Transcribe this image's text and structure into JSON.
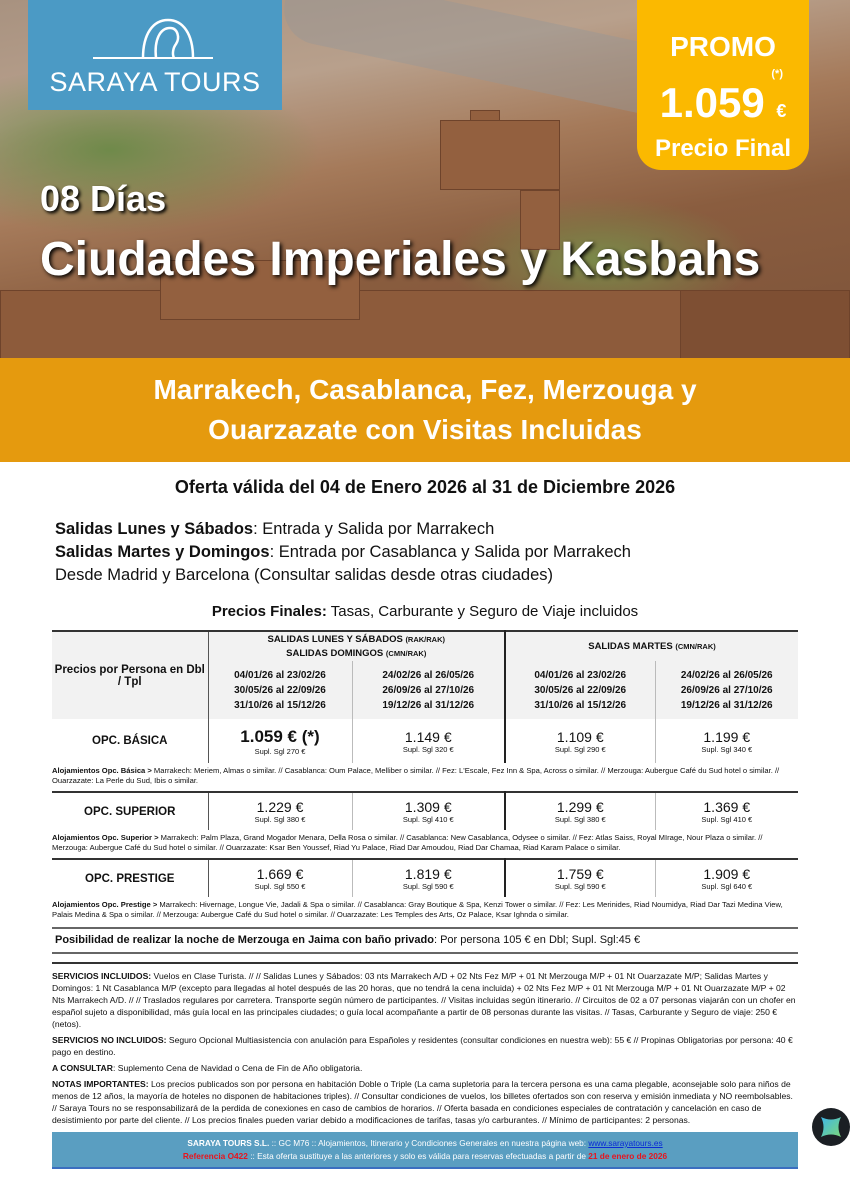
{
  "brand": {
    "name": "SARAYA TOURS",
    "color": "#4b9ac5"
  },
  "promo": {
    "label": "PROMO",
    "price": "1.059",
    "currency": "€",
    "asterisk": "(*)",
    "final": "Precio Final",
    "color": "#fbb900"
  },
  "hero": {
    "days": "08 Días",
    "title": "Ciudades Imperiales y Kasbahs"
  },
  "band": {
    "line1": "Marrakech, Casablanca, Fez, Merzouga y",
    "line2": "Ouarzazate con Visitas Incluidas",
    "color": "#e59a0e"
  },
  "validity": "Oferta válida del 04 de Enero 2026 al 31 de Diciembre 2026",
  "departures": [
    {
      "bold": "Salidas Lunes y Sábados",
      "text": ": Entrada y Salida por Marrakech"
    },
    {
      "bold": "Salidas Martes y Domingos",
      "text": ": Entrada por Casablanca y Salida por Marrakech"
    },
    {
      "bold": "",
      "text": "Desde Madrid y Barcelona (Consultar salidas desde otras ciudades)"
    }
  ],
  "prices_note": {
    "bold": "Precios Finales:",
    "text": " Tasas, Carburante y Seguro de Viaje incluidos"
  },
  "table": {
    "corner": "Precios por Persona en Dbl / Tpl",
    "group1": {
      "l1": "SALIDAS LUNES Y SÁBADOS",
      "l1s": "(RAK/RAK)",
      "l2": "SALIDAS DOMINGOS",
      "l2s": "(CMN/RAK)"
    },
    "group2": {
      "l1": "SALIDAS MARTES",
      "l1s": "(CMN/RAK)"
    },
    "dates": [
      [
        "04/01/26 al 23/02/26",
        "30/05/26 al 22/09/26",
        "31/10/26 al 15/12/26"
      ],
      [
        "24/02/26 al 26/05/26",
        "26/09/26 al 27/10/26",
        "19/12/26 al 31/12/26"
      ],
      [
        "04/01/26 al 23/02/26",
        "30/05/26 al 22/09/26",
        "31/10/26 al 15/12/26"
      ],
      [
        "24/02/26 al 26/05/26",
        "26/09/26 al 27/10/26",
        "19/12/26 al 31/12/26"
      ]
    ],
    "rows": [
      {
        "label": "OPC. BÁSICA",
        "prices": [
          {
            "p": "1.059 € (*)",
            "s": "Supl. Sgl 270 €"
          },
          {
            "p": "1.149 €",
            "s": "Supl. Sgl 320 €"
          },
          {
            "p": "1.109 €",
            "s": "Supl. Sgl 290 €"
          },
          {
            "p": "1.199 €",
            "s": "Supl. Sgl 340 €"
          }
        ],
        "hotels_label": "Alojamientos Opc. Básica >",
        "hotels": " Marrakech: Meriem, Almas o similar. // Casablanca: Oum Palace, Melliber o similar. // Fez: L'Escale, Fez Inn & Spa, Across o similar. // Merzouga: Aubergue Café du Sud hotel o similar. // Ouarzazate: La Perle du Sud, Ibis o similar."
      },
      {
        "label": "OPC. SUPERIOR",
        "prices": [
          {
            "p": "1.229 €",
            "s": "Supl. Sgl 380 €"
          },
          {
            "p": "1.309 €",
            "s": "Supl. Sgl 410 €"
          },
          {
            "p": "1.299 €",
            "s": "Supl. Sgl 380 €"
          },
          {
            "p": "1.369 €",
            "s": "Supl. Sgl 410 €"
          }
        ],
        "hotels_label": "Alojamientos Opc. Superior >",
        "hotels": " Marrakech: Palm Plaza, Grand Mogador Menara, Della Rosa o similar. // Casablanca: New Casablanca, Odysee o similar. // Fez: Atlas Saiss, Royal MIrage, Nour Plaza o similar. // Merzouga: Aubergue Café du Sud hotel o similar. // Ouarzazate: Ksar Ben Youssef, Riad Yu Palace, Riad Dar Amoudou, Riad Dar Chamaa, Riad Karam Palace o similar."
      },
      {
        "label": "OPC. PRESTIGE",
        "prices": [
          {
            "p": "1.669 €",
            "s": "Supl. Sgl 550 €"
          },
          {
            "p": "1.819 €",
            "s": "Supl. Sgl 590 €"
          },
          {
            "p": "1.759 €",
            "s": "Supl. Sgl 590 €"
          },
          {
            "p": "1.909 €",
            "s": "Supl. Sgl 640 €"
          }
        ],
        "hotels_label": "Alojamientos Opc. Prestige >",
        "hotels": " Marrakech: Hivernage, Longue Vie, Jadali & Spa o similar. // Casablanca: Gray Boutique & Spa, Kenzi Tower o similar. // Fez: Les Merinides, Riad Noumidya, Riad Dar Tazi Medina View, Palais Medina & Spa o similar. // Merzouga: Aubergue Café du Sud hotel o similar.  // Ouarzazate: Les Temples des Arts, Oz Palace, Ksar Ighnda o similar."
      }
    ]
  },
  "jaima": {
    "bold": "Posibilidad de realizar la noche de Merzouga en Jaima con baño privado",
    "text": ": Por persona 105 € en Dbl; Supl. Sgl:45 €"
  },
  "services": [
    {
      "bold": "SERVICIOS INCLUIDOS:",
      "text": " Vuelos en Clase Turista. // // Salidas Lunes y Sábados: 03 nts Marrakech A/D + 02 Nts Fez M/P + 01 Nt Merzouga M/P + 01 Nt Ouarzazate M/P; Salidas Martes y Domingos: 1 Nt Casablanca M/P (excepto para llegadas al hotel después de las 20 horas, que no tendrá la cena incluida) + 02 Nts Fez M/P + 01 Nt Merzouga M/P + 01 Nt Ouarzazate M/P + 02 Nts Marrakech A/D. // // Traslados regulares por carretera. Transporte según número de participantes. // Visitas incluidas según itinerario. // Circuitos de 02 a 07 personas viajarán con un chofer en español sujeto a disponibilidad, más guía local en las principales ciudades; o guía local acompañante a partir de 08 personas durante las visitas. // Tasas, Carburante y Seguro de viaje: 250 € (netos)."
    },
    {
      "bold": "SERVICIOS NO INCLUIDOS:",
      "text": " Seguro Opcional Multiasistencia con anulación para Españoles y residentes (consultar condiciones en nuestra web): 55 € // Propinas Obligatorias por persona: 40 €  pago en destino."
    },
    {
      "bold": "A CONSULTAR",
      "text": ": Suplemento Cena de Navidad o Cena de Fin de Año obligatoria."
    },
    {
      "bold": "NOTAS IMPORTANTES:",
      "text": " Los precios publicados son por persona en habitación Doble o Triple (La cama supletoria para la tercera persona es una cama plegable, aconsejable solo para niños de menos de 12 años, la mayoría de hoteles no disponen de habitaciones triples). // Consultar condiciones de vuelos, los billetes ofertados son con reserva y emisión inmediata y NO reembolsables. // Saraya Tours no se responsabilizará de la perdida de conexiones en caso de cambios de horarios. // Oferta basada en condiciones especiales de contratación y cancelación en caso de desistimiento por parte del cliente. // Los precios finales pueden variar debido a modificaciones de tarifas, tasas y/o carburantes. // Mínimo de participantes: 2 personas."
    }
  ],
  "footer": {
    "company": "SARAYA TOURS S.L.",
    "line1": " :: GC M76 ::  Alojamientos, Itinerario y Condiciones Generales en nuestra página web:  ",
    "url": "www.sarayatours.es",
    "ref": "Referencia O422",
    "line2": " :: Esta oferta sustituye a las anteriores y solo es válida para reservas efectuadas a partir de ",
    "date": "21 de enero de 2026"
  }
}
